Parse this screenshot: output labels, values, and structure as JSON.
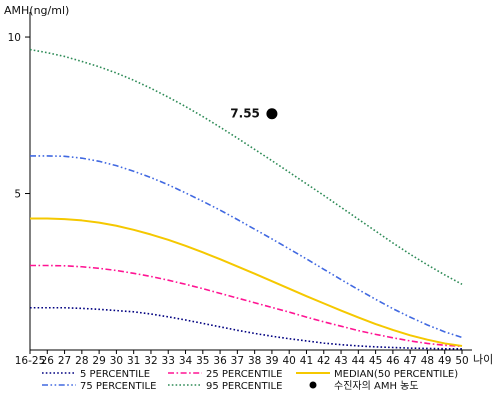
{
  "chart_data": {
    "type": "line",
    "title": "",
    "ylabel": "AMH(ng/ml)",
    "xlabel": "나이",
    "ylim": [
      0,
      10.8
    ],
    "yticks": [
      5,
      10
    ],
    "categories": [
      "16-25",
      "26",
      "27",
      "28",
      "29",
      "30",
      "31",
      "32",
      "33",
      "34",
      "35",
      "36",
      "37",
      "38",
      "39",
      "40",
      "41",
      "42",
      "43",
      "44",
      "45",
      "46",
      "47",
      "48",
      "49",
      "50"
    ],
    "series": [
      {
        "name": "5 PERCENTILE",
        "color": "#000080",
        "dash": "dotted",
        "values": [
          1.35,
          1.35,
          1.35,
          1.33,
          1.3,
          1.26,
          1.22,
          1.15,
          1.06,
          0.96,
          0.85,
          0.74,
          0.63,
          0.53,
          0.44,
          0.36,
          0.29,
          0.22,
          0.17,
          0.13,
          0.1,
          0.08,
          0.06,
          0.05,
          0.04,
          0.04
        ]
      },
      {
        "name": "25 PERCENTILE",
        "color": "#ff1493",
        "dash": "dashdot",
        "values": [
          2.7,
          2.7,
          2.69,
          2.66,
          2.61,
          2.54,
          2.45,
          2.35,
          2.23,
          2.1,
          1.96,
          1.81,
          1.66,
          1.51,
          1.36,
          1.21,
          1.05,
          0.9,
          0.76,
          0.62,
          0.5,
          0.39,
          0.29,
          0.21,
          0.15,
          0.12
        ]
      },
      {
        "name": "MEDIAN(50 PERCENTILE)",
        "color": "#f5c800",
        "dash": "solid",
        "values": [
          4.2,
          4.2,
          4.18,
          4.14,
          4.07,
          3.97,
          3.84,
          3.69,
          3.52,
          3.33,
          3.12,
          2.9,
          2.67,
          2.44,
          2.2,
          1.96,
          1.72,
          1.49,
          1.26,
          1.04,
          0.83,
          0.64,
          0.47,
          0.33,
          0.21,
          0.13
        ]
      },
      {
        "name": "75 PERCENTILE",
        "color": "#4169e1",
        "dash": "dashdotdot",
        "values": [
          6.2,
          6.2,
          6.19,
          6.13,
          6.03,
          5.89,
          5.71,
          5.51,
          5.28,
          5.02,
          4.75,
          4.47,
          4.17,
          3.86,
          3.55,
          3.23,
          2.91,
          2.58,
          2.25,
          1.93,
          1.62,
          1.32,
          1.05,
          0.8,
          0.58,
          0.4
        ]
      },
      {
        "name": "95 PERCENTILE",
        "color": "#2e8b57",
        "dash": "dotted",
        "values": [
          9.6,
          9.5,
          9.38,
          9.22,
          9.05,
          8.85,
          8.62,
          8.36,
          8.08,
          7.78,
          7.46,
          7.12,
          6.77,
          6.41,
          6.05,
          5.68,
          5.31,
          4.94,
          4.56,
          4.18,
          3.8,
          3.42,
          3.06,
          2.72,
          2.4,
          2.1
        ]
      }
    ],
    "patient_point": {
      "name": "수진자의 AMH 농도",
      "x": "39",
      "y": 7.55,
      "label": "7.55",
      "color": "#000000"
    },
    "legend": {
      "position": "bottom",
      "order": [
        "5 PERCENTILE",
        "25 PERCENTILE",
        "MEDIAN(50 PERCENTILE)",
        "75 PERCENTILE",
        "95 PERCENTILE",
        "수진자의 AMH 농도"
      ]
    },
    "grid": false
  }
}
